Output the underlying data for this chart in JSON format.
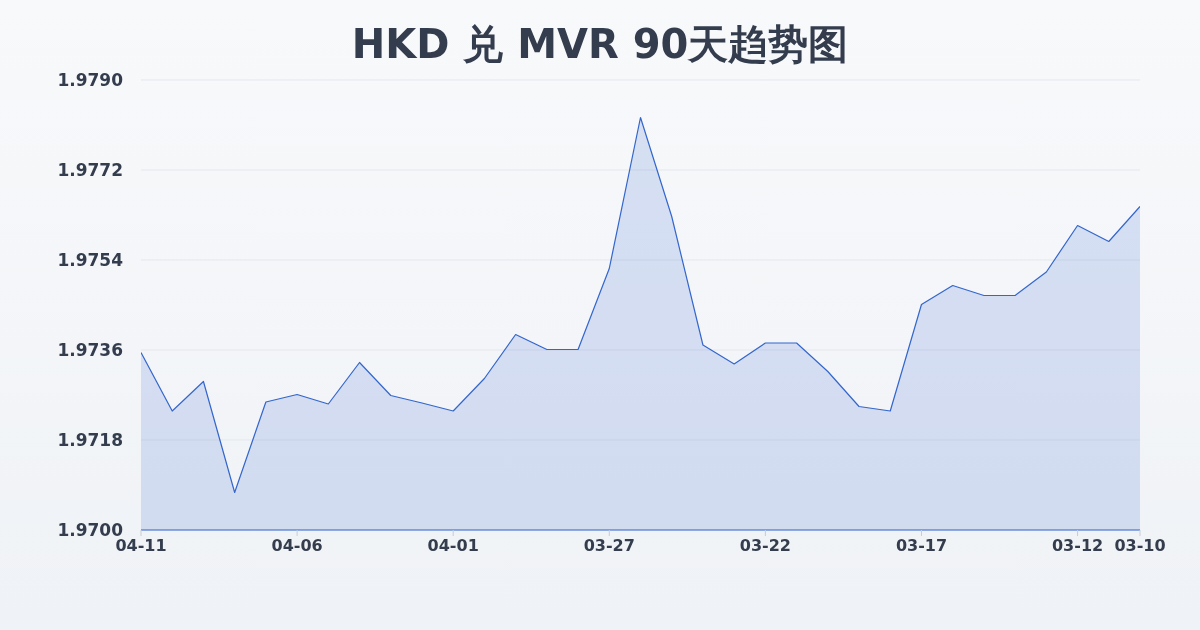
{
  "chart_data": {
    "type": "area",
    "title": "HKD 兑 MVR 90天趋势图",
    "categories": [
      "04-11",
      null,
      null,
      null,
      null,
      "04-06",
      null,
      null,
      null,
      null,
      "04-01",
      null,
      null,
      null,
      null,
      "03-27",
      null,
      null,
      null,
      null,
      "03-22",
      null,
      null,
      null,
      null,
      "03-17",
      null,
      null,
      null,
      null,
      "03-12",
      null,
      "03-10"
    ],
    "series": [
      {
        "color": "#3366cc",
        "values": [
          1.97355,
          1.97238,
          1.97297,
          1.97075,
          1.97256,
          1.97271,
          1.97252,
          1.97335,
          1.97269,
          1.97254,
          1.97238,
          1.97303,
          1.97391,
          1.97361,
          1.97361,
          1.97523,
          1.97825,
          1.97627,
          1.9737,
          1.97332,
          1.97374,
          1.97374,
          1.97317,
          1.97247,
          1.97238,
          1.97451,
          1.97489,
          1.97469,
          1.97469,
          1.97516,
          1.97609,
          1.97577,
          1.97647
        ]
      }
    ],
    "ylim": [
      1.97,
      1.979
    ],
    "yticks": [
      {
        "value": 1.97,
        "label": "1.9700"
      },
      1.9718,
      1.9736,
      1.9754,
      1.9772,
      {
        "value": 1.979,
        "label": "1.9790"
      }
    ],
    "grid": "y"
  }
}
